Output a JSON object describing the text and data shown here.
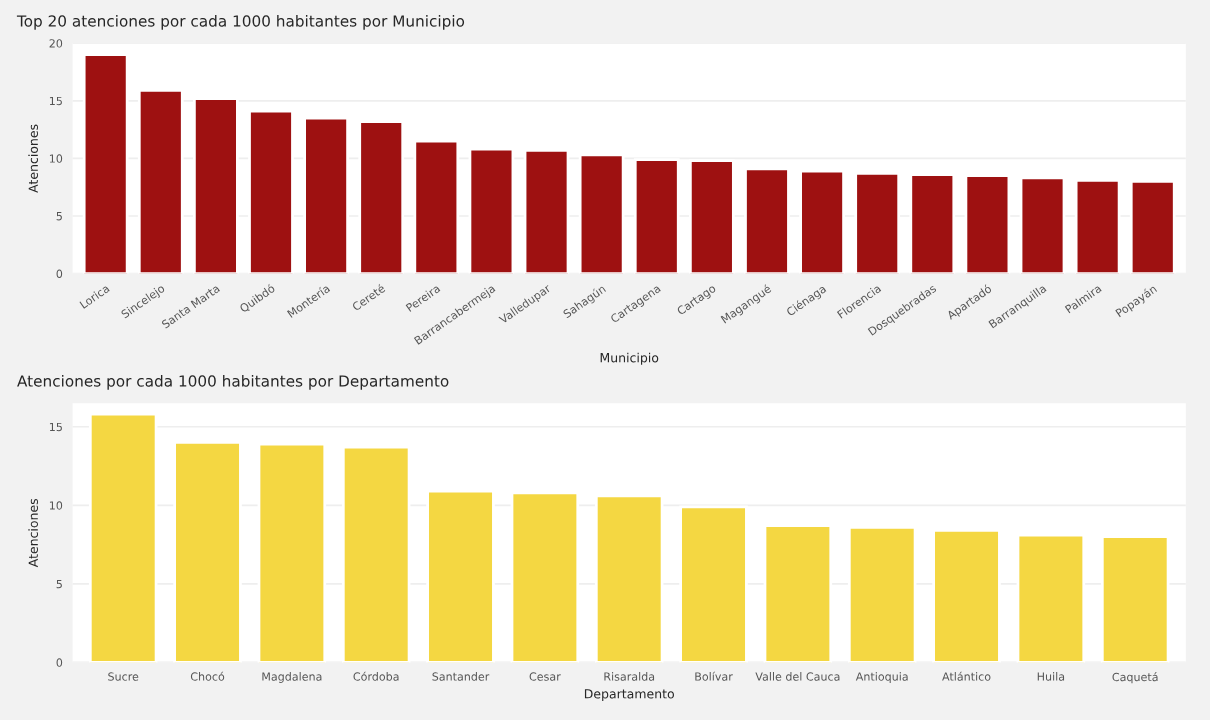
{
  "chart_data": [
    {
      "type": "bar",
      "title": "Top 20 atenciones por cada 1000 habitantes por Municipio",
      "xlabel": "Municipio",
      "ylabel": "Atenciones",
      "categories": [
        "Lorica",
        "Sincelejo",
        "Santa Marta",
        "Quibdó",
        "Montería",
        "Cereté",
        "Pereira",
        "Barrancabermeja",
        "Valledupar",
        "Sahagún",
        "Cartagena",
        "Cartago",
        "Magangué",
        "Ciénaga",
        "Florencia",
        "Dosquebradas",
        "Apartadó",
        "Barranquilla",
        "Palmira",
        "Popayán"
      ],
      "values": [
        19.0,
        15.9,
        15.2,
        14.1,
        13.5,
        13.2,
        11.5,
        10.8,
        10.7,
        10.3,
        9.9,
        9.8,
        9.1,
        8.9,
        8.7,
        8.6,
        8.5,
        8.3,
        8.1,
        8.0
      ],
      "color": "#9e1111",
      "ylim": [
        0,
        20
      ],
      "yticks": [
        0,
        5,
        10,
        15,
        20
      ],
      "grid": "y"
    },
    {
      "type": "bar",
      "title": "Atenciones por cada 1000 habitantes por Departamento",
      "xlabel": "Departamento",
      "ylabel": "Atenciones",
      "categories": [
        "Sucre",
        "Chocó",
        "Magdalena",
        "Córdoba",
        "Santander",
        "Cesar",
        "Risaralda",
        "Bolívar",
        "Valle del Cauca",
        "Antioquia",
        "Atlántico",
        "Huila",
        "Caquetá"
      ],
      "values": [
        15.8,
        14.0,
        13.9,
        13.7,
        10.9,
        10.8,
        10.6,
        9.9,
        8.7,
        8.6,
        8.4,
        8.1,
        8.0
      ],
      "color": "#f4d742",
      "ylim": [
        0,
        16.5
      ],
      "yticks": [
        0,
        5,
        10,
        15
      ],
      "grid": "y"
    }
  ]
}
